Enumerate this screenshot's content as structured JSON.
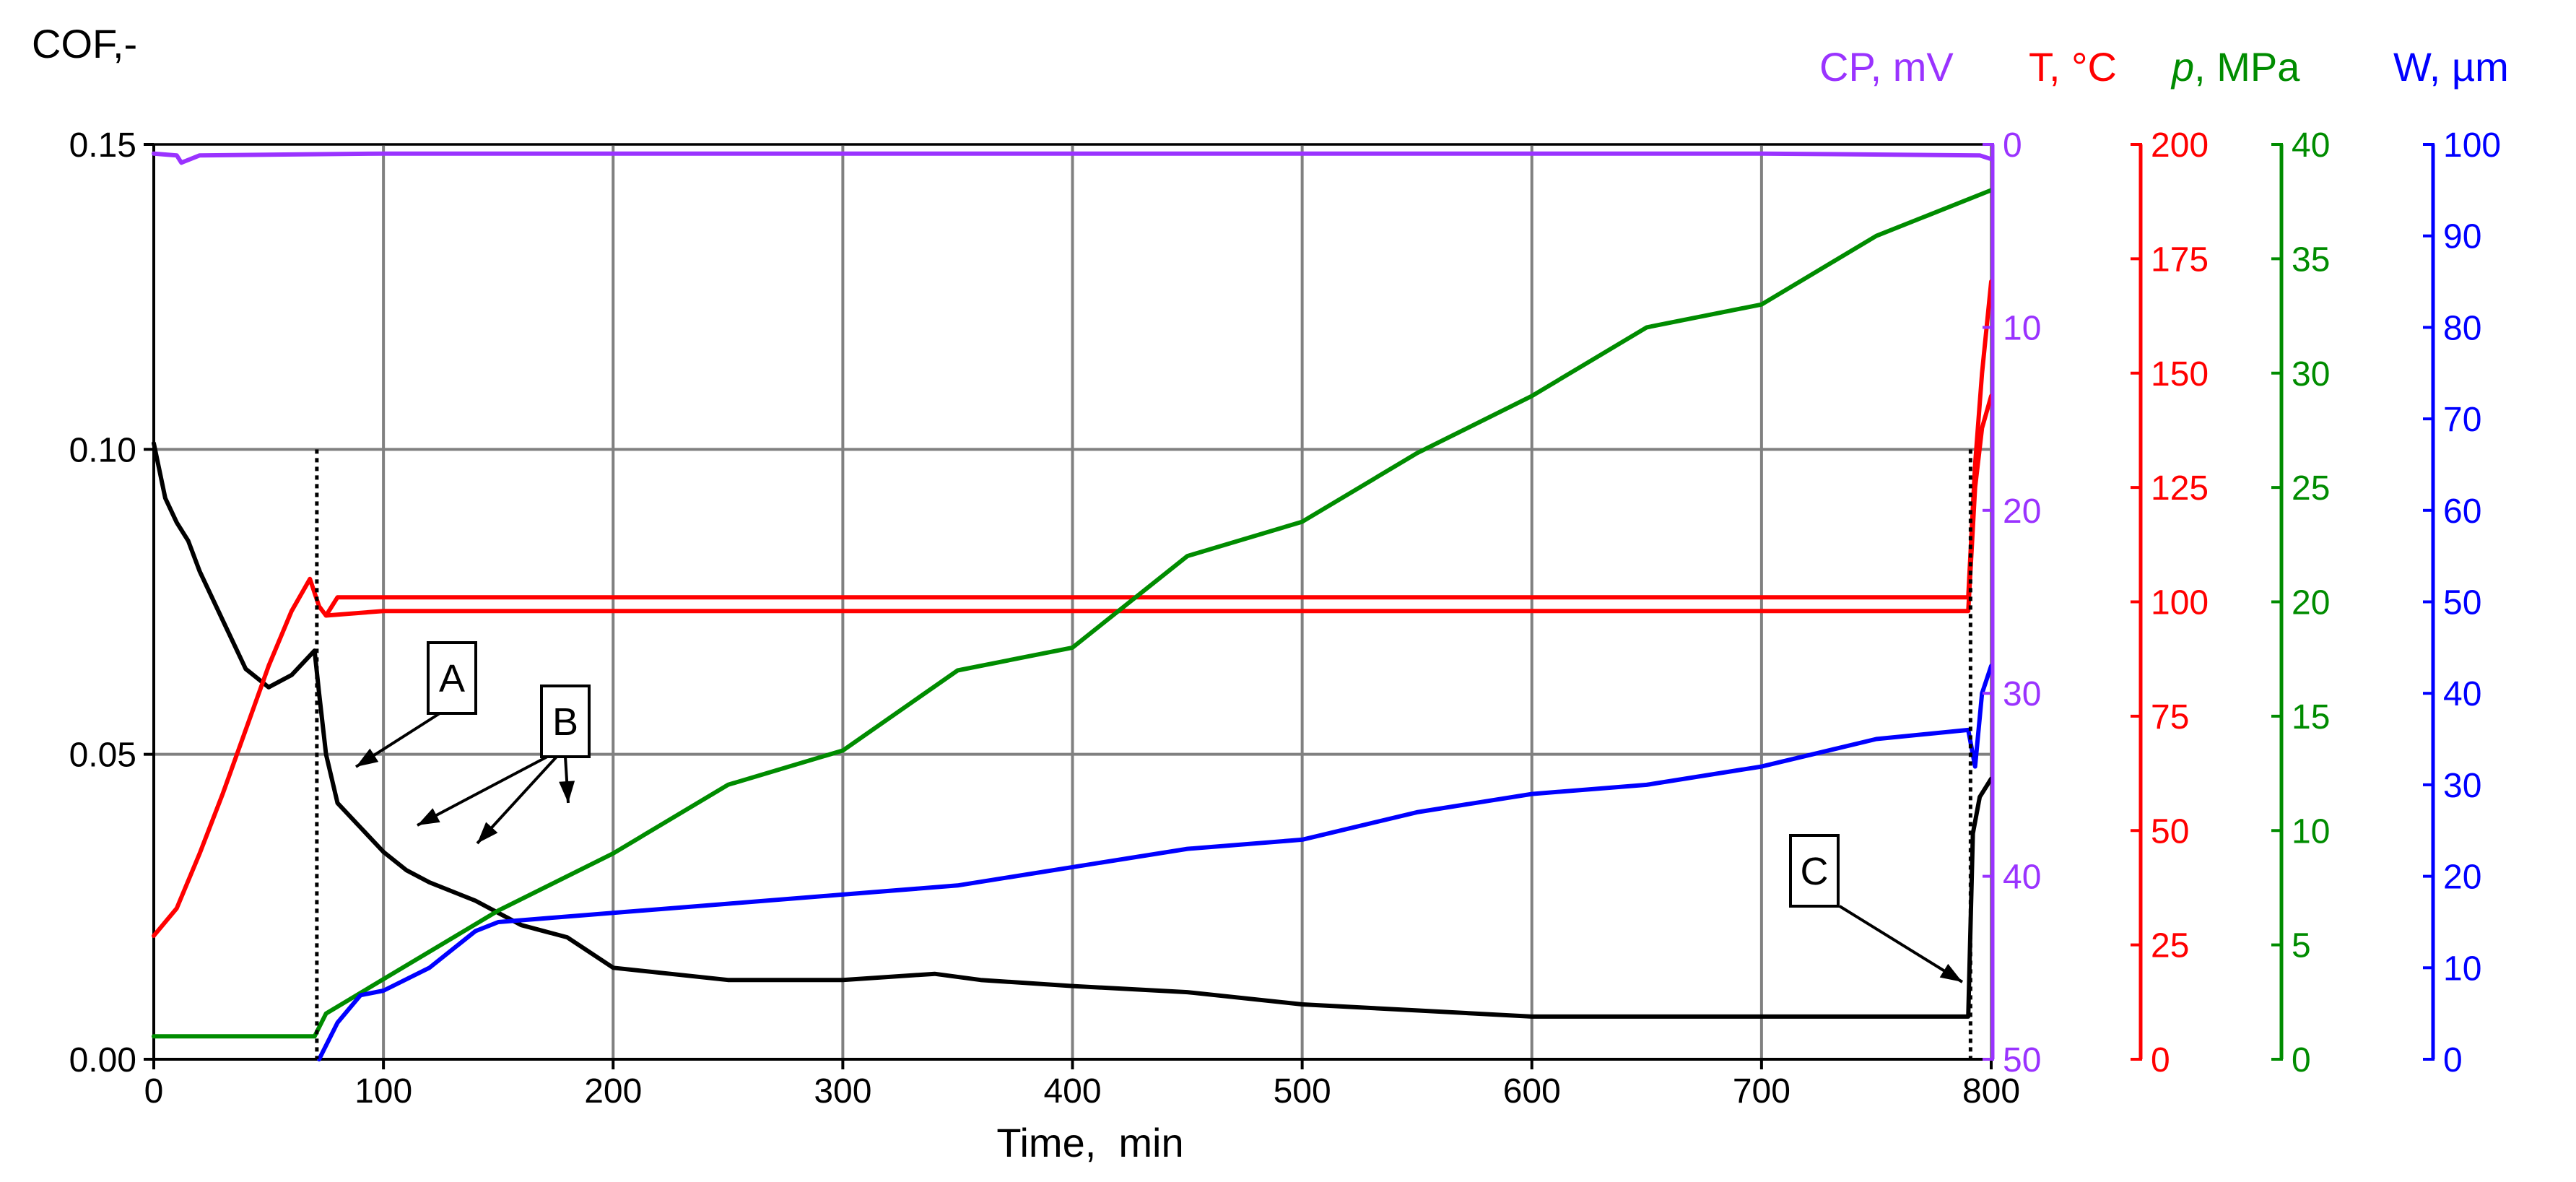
{
  "chart_data": {
    "type": "line",
    "xlabel": "Time,  min",
    "xlim": [
      0,
      800
    ],
    "xticks": [
      0,
      100,
      200,
      300,
      400,
      500,
      600,
      700,
      800
    ],
    "grid": true,
    "axes": {
      "cof": {
        "label": "COF,-",
        "color": "#000000",
        "range": [
          0,
          0.15
        ],
        "ticks": [
          0.0,
          0.05,
          0.1,
          0.15
        ],
        "tick_labels": [
          "0.00",
          "0.05",
          "0.10",
          "0.15"
        ]
      },
      "cp": {
        "label": "CP, mV",
        "color": "#9a33ff",
        "range": [
          0,
          50
        ],
        "inverted": true,
        "ticks": [
          0,
          10,
          20,
          30,
          40,
          50
        ]
      },
      "t": {
        "label": "T, °C",
        "color": "#ff0000",
        "range": [
          0,
          200
        ],
        "ticks": [
          0,
          25,
          50,
          75,
          100,
          125,
          150,
          175,
          200
        ]
      },
      "p": {
        "label_italic": "p",
        "label_rest": ", MPa",
        "color": "#008c00",
        "range": [
          0,
          40
        ],
        "ticks": [
          0,
          5,
          10,
          15,
          20,
          25,
          30,
          35,
          40
        ]
      },
      "w": {
        "label": "W, µm",
        "color": "#0000ff",
        "range": [
          0,
          100
        ],
        "ticks": [
          0,
          10,
          20,
          30,
          40,
          50,
          60,
          70,
          80,
          90,
          100
        ]
      }
    },
    "series": [
      {
        "axis": "cof",
        "color": "#000000",
        "x": [
          0,
          5,
          10,
          15,
          20,
          30,
          40,
          50,
          60,
          70,
          72,
          75,
          80,
          90,
          100,
          110,
          120,
          140,
          160,
          180,
          200,
          250,
          300,
          340,
          360,
          400,
          450,
          500,
          550,
          600,
          650,
          700,
          750,
          790,
          792,
          795,
          800
        ],
        "y": [
          0.101,
          0.092,
          0.088,
          0.085,
          0.08,
          0.072,
          0.064,
          0.061,
          0.063,
          0.067,
          0.06,
          0.05,
          0.042,
          0.038,
          0.034,
          0.031,
          0.029,
          0.026,
          0.022,
          0.02,
          0.015,
          0.013,
          0.013,
          0.014,
          0.013,
          0.012,
          0.011,
          0.009,
          0.008,
          0.007,
          0.007,
          0.007,
          0.007,
          0.007,
          0.037,
          0.043,
          0.046
        ]
      },
      {
        "axis": "cp",
        "color": "#9a33ff",
        "x": [
          0,
          10,
          12,
          20,
          100,
          300,
          500,
          700,
          795,
          800
        ],
        "y": [
          0.5,
          0.6,
          1.0,
          0.6,
          0.5,
          0.5,
          0.5,
          0.5,
          0.6,
          0.8
        ]
      },
      {
        "axis": "t",
        "color": "#ff0000",
        "x": [
          0,
          10,
          20,
          30,
          40,
          50,
          60,
          68,
          72,
          75,
          80,
          100,
          200,
          300,
          400,
          500,
          600,
          700,
          790,
          793,
          796,
          800
        ],
        "y": [
          27,
          33,
          45,
          58,
          72,
          86,
          98,
          105,
          99,
          97,
          101,
          101,
          101,
          101,
          101,
          101,
          101,
          101,
          101,
          130,
          150,
          170
        ]
      },
      {
        "axis": "t",
        "color": "#ff0000",
        "x": [
          75,
          100,
          200,
          300,
          400,
          500,
          600,
          700,
          790,
          793,
          796,
          800
        ],
        "y": [
          97,
          98,
          98,
          98,
          98,
          98,
          98,
          98,
          98,
          125,
          138,
          145
        ]
      },
      {
        "axis": "p",
        "color": "#008c00",
        "x": [
          0,
          70,
          75,
          100,
          150,
          200,
          250,
          300,
          350,
          400,
          450,
          500,
          550,
          600,
          650,
          700,
          750,
          800
        ],
        "y": [
          1,
          1,
          2,
          3.5,
          6.5,
          9,
          12,
          13.5,
          17,
          18,
          22,
          23.5,
          26.5,
          29,
          32,
          33,
          36,
          38
        ]
      },
      {
        "axis": "w",
        "color": "#0000ff",
        "x": [
          72,
          80,
          90,
          100,
          120,
          140,
          150,
          200,
          250,
          300,
          350,
          400,
          450,
          500,
          550,
          600,
          650,
          700,
          750,
          790,
          793,
          796,
          800
        ],
        "y": [
          0,
          4,
          7,
          7.5,
          10,
          14,
          15,
          16,
          17,
          18,
          19,
          21,
          23,
          24,
          27,
          29,
          30,
          32,
          35,
          36,
          32,
          40,
          43
        ]
      }
    ],
    "markers": [
      {
        "x": 71
      },
      {
        "x": 791
      }
    ],
    "annotations": [
      {
        "label": "A"
      },
      {
        "label": "B"
      },
      {
        "label": "C"
      }
    ]
  }
}
